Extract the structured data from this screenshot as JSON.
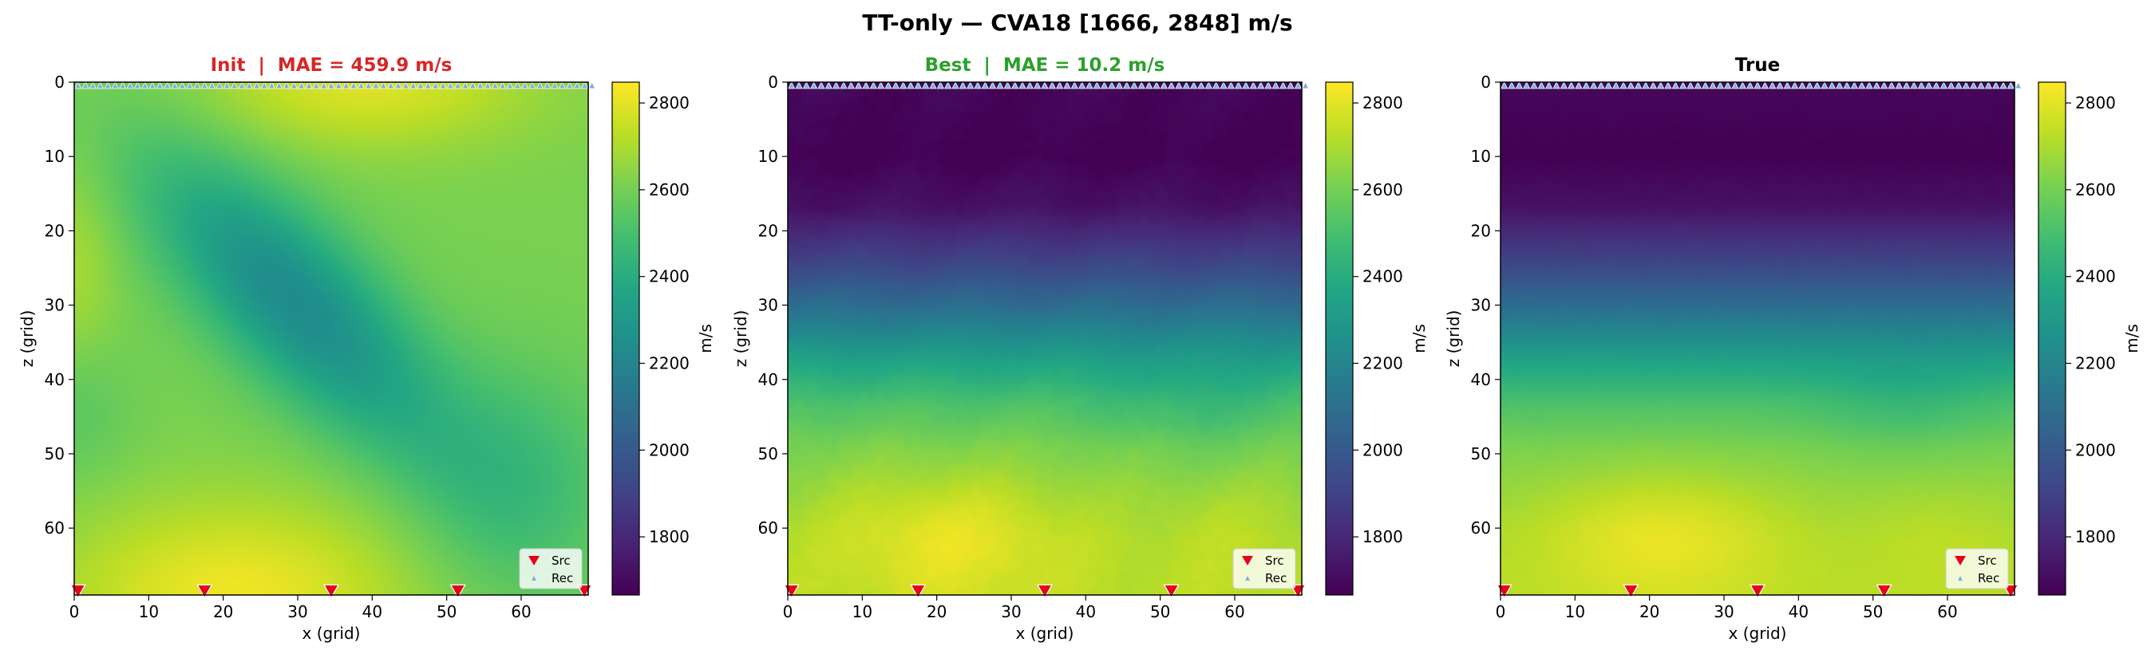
{
  "figure": {
    "suptitle": "TT-only — CVA18 [1666, 2848] m/s"
  },
  "colors": {
    "init_title": "#d62728",
    "best_title": "#2ca02c",
    "true_title": "#000000",
    "source_marker": "#e8001c",
    "receiver_marker": "#7fb2d6"
  },
  "colormap": "viridis",
  "chart_data": [
    {
      "type": "heatmap",
      "title": "Init  |  MAE = 459.9 m/s",
      "xlabel": "x (grid)",
      "ylabel": "z (grid)",
      "xticks": [
        0,
        10,
        20,
        30,
        40,
        50,
        60
      ],
      "yticks": [
        0,
        10,
        20,
        30,
        40,
        50,
        60
      ],
      "xlim": [
        0,
        69
      ],
      "ylim": [
        69,
        0
      ],
      "value_range": [
        1666,
        2848
      ],
      "colorbar": {
        "label": "m/s",
        "ticks": [
          1800,
          2000,
          2200,
          2400,
          2600,
          2800
        ]
      },
      "legend": {
        "position": "lower-right",
        "entries": [
          "Src",
          "Rec"
        ]
      },
      "sources_x": [
        0,
        17,
        34,
        51,
        68
      ],
      "sources_z": 68.5,
      "receivers": "every grid column at z = 0"
    },
    {
      "type": "heatmap",
      "title": "Best  |  MAE = 10.2 m/s",
      "xlabel": "x (grid)",
      "ylabel": "z (grid)",
      "xticks": [
        0,
        10,
        20,
        30,
        40,
        50,
        60
      ],
      "yticks": [
        0,
        10,
        20,
        30,
        40,
        50,
        60
      ],
      "xlim": [
        0,
        69
      ],
      "ylim": [
        69,
        0
      ],
      "value_range": [
        1666,
        2848
      ],
      "colorbar": {
        "label": "m/s",
        "ticks": [
          1800,
          2000,
          2200,
          2400,
          2600,
          2800
        ]
      },
      "legend": {
        "position": "lower-right",
        "entries": [
          "Src",
          "Rec"
        ]
      },
      "sources_x": [
        0,
        17,
        34,
        51,
        68
      ],
      "sources_z": 68.5,
      "receivers": "every grid column at z = 0"
    },
    {
      "type": "heatmap",
      "title": "True",
      "xlabel": "x (grid)",
      "ylabel": "z (grid)",
      "xticks": [
        0,
        10,
        20,
        30,
        40,
        50,
        60
      ],
      "yticks": [
        0,
        10,
        20,
        30,
        40,
        50,
        60
      ],
      "xlim": [
        0,
        69
      ],
      "ylim": [
        69,
        0
      ],
      "value_range": [
        1666,
        2848
      ],
      "colorbar": {
        "label": "m/s",
        "ticks": [
          1800,
          2000,
          2200,
          2400,
          2600,
          2800
        ]
      },
      "legend": {
        "position": "lower-right",
        "entries": [
          "Src",
          "Rec"
        ]
      },
      "sources_x": [
        0,
        17,
        34,
        51,
        68
      ],
      "sources_z": 68.5,
      "receivers": "every grid column at z = 0"
    }
  ]
}
